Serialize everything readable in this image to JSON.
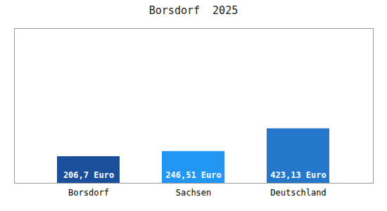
{
  "chart_data": {
    "type": "bar",
    "title": "Borsdorf  2025",
    "categories": [
      "Borsdorf",
      "Sachsen",
      "Deutschland"
    ],
    "values": [
      206.7,
      246.51,
      423.13
    ],
    "value_labels": [
      "206,7 Euro",
      "246,51 Euro",
      "423,13 Euro"
    ],
    "colors": [
      "#1a4f9c",
      "#2196f3",
      "#2577cc"
    ],
    "ylim": [
      0,
      1200
    ],
    "grid": false,
    "data_labels": true,
    "tick_labels": "x"
  }
}
